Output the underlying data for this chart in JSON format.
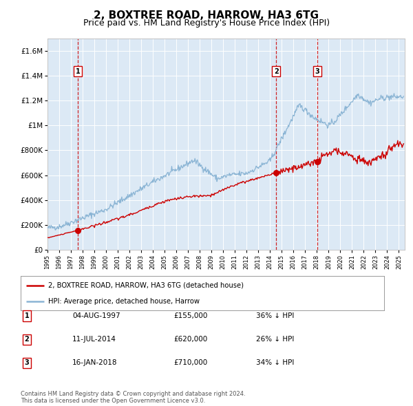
{
  "title": "2, BOXTREE ROAD, HARROW, HA3 6TG",
  "subtitle": "Price paid vs. HM Land Registry's House Price Index (HPI)",
  "title_fontsize": 11,
  "subtitle_fontsize": 9,
  "background_color": "#ffffff",
  "plot_bg_color": "#dce9f5",
  "grid_color": "#ffffff",
  "sale_line_color": "#cc0000",
  "hpi_line_color": "#8ab4d4",
  "vline_color": "#cc0000",
  "sale_dot_color": "#cc0000",
  "legend_label_sale": "2, BOXTREE ROAD, HARROW, HA3 6TG (detached house)",
  "legend_label_hpi": "HPI: Average price, detached house, Harrow",
  "transactions": [
    {
      "num": 1,
      "date": "04-AUG-1997",
      "price": 155000,
      "pct": "36%",
      "x_year": 1997.58
    },
    {
      "num": 2,
      "date": "11-JUL-2014",
      "price": 620000,
      "pct": "26%",
      "x_year": 2014.52
    },
    {
      "num": 3,
      "date": "16-JAN-2018",
      "price": 710000,
      "pct": "34%",
      "x_year": 2018.04
    }
  ],
  "footer": "Contains HM Land Registry data © Crown copyright and database right 2024.\nThis data is licensed under the Open Government Licence v3.0.",
  "ylim": [
    0,
    1700000
  ],
  "xlim": [
    1995,
    2025.5
  ],
  "yticks": [
    0,
    200000,
    400000,
    600000,
    800000,
    1000000,
    1200000,
    1400000,
    1600000
  ],
  "ytick_labels": [
    "£0",
    "£200K",
    "£400K",
    "£600K",
    "£800K",
    "£1M",
    "£1.2M",
    "£1.4M",
    "£1.6M"
  ],
  "xticks": [
    1995,
    1996,
    1997,
    1998,
    1999,
    2000,
    2001,
    2002,
    2003,
    2004,
    2005,
    2006,
    2007,
    2008,
    2009,
    2010,
    2011,
    2012,
    2013,
    2014,
    2015,
    2016,
    2017,
    2018,
    2019,
    2020,
    2021,
    2022,
    2023,
    2024,
    2025
  ]
}
